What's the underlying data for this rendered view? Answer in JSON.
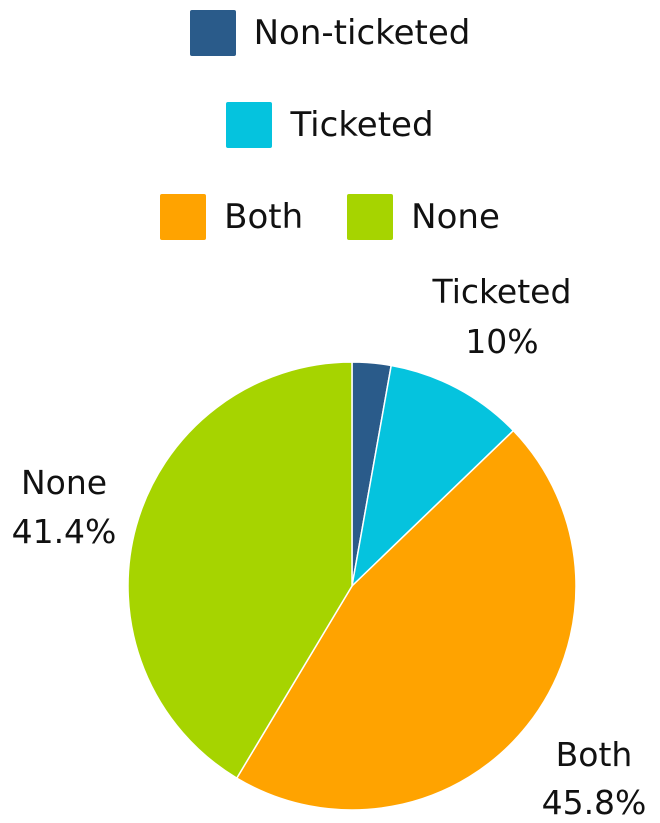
{
  "chart_data": {
    "type": "pie",
    "series": [
      {
        "categories": [
          "Non-ticketed",
          "Ticketed",
          "Both",
          "None"
        ],
        "values": [
          2.8,
          10,
          45.8,
          41.4
        ]
      }
    ],
    "colors": [
      "#2a5b8a",
      "#05c3de",
      "#ffa300",
      "#a6d400"
    ],
    "legend": {
      "placement": "top",
      "items": [
        {
          "label": "Non-ticketed",
          "color": "#2a5b8a"
        },
        {
          "label": "Ticketed",
          "color": "#05c3de"
        },
        {
          "label": "Both",
          "color": "#ffa300"
        },
        {
          "label": "None",
          "color": "#a6d400"
        }
      ]
    },
    "data_labels": [
      {
        "name": "Ticketed",
        "value": "10%"
      },
      {
        "name": "Both",
        "value": "45.8%"
      },
      {
        "name": "None",
        "value": "41.4%"
      }
    ]
  }
}
